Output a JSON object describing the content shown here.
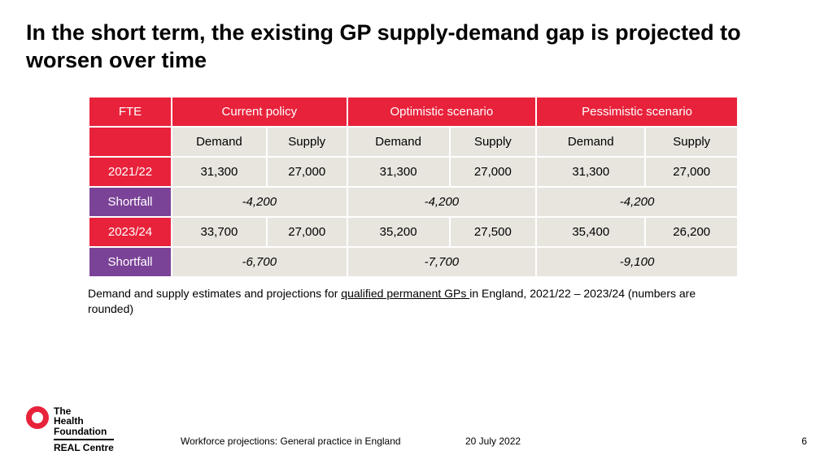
{
  "title": "In the short term, the existing GP supply-demand gap is projected to worsen over time",
  "table": {
    "colors": {
      "header_red_bg": "#e8223b",
      "header_purple_bg": "#7b4397",
      "header_fg": "#ffffff",
      "cell_bg": "#e8e5df",
      "cell_fg": "#000000"
    },
    "fte_label": "FTE",
    "scenarios": [
      "Current policy",
      "Optimistic scenario",
      "Pessimistic scenario"
    ],
    "sub_headers": [
      "Demand",
      "Supply"
    ],
    "rows": [
      {
        "type": "year",
        "label": "2021/22",
        "cells": [
          "31,300",
          "27,000",
          "31,300",
          "27,000",
          "31,300",
          "27,000"
        ]
      },
      {
        "type": "shortfall",
        "label": "Shortfall",
        "merged": [
          "-4,200",
          "-4,200",
          "-4,200"
        ]
      },
      {
        "type": "year",
        "label": "2023/24",
        "cells": [
          "33,700",
          "27,000",
          "35,200",
          "27,500",
          "35,400",
          "26,200"
        ]
      },
      {
        "type": "shortfall",
        "label": "Shortfall",
        "merged": [
          "-6,700",
          "-7,700",
          "-9,100"
        ]
      }
    ]
  },
  "caption_pre": "Demand and supply estimates and projections for ",
  "caption_underline": "qualified permanent GPs ",
  "caption_post": "in England, 2021/22 – 2023/24 (numbers are rounded)",
  "footer": {
    "logo_line1": "The",
    "logo_line2": "Health",
    "logo_line3": "Foundation",
    "logo_sub": "REAL Centre",
    "doc_title": "Workforce projections: General practice in England",
    "date": "20 July 2022",
    "page": "6"
  }
}
